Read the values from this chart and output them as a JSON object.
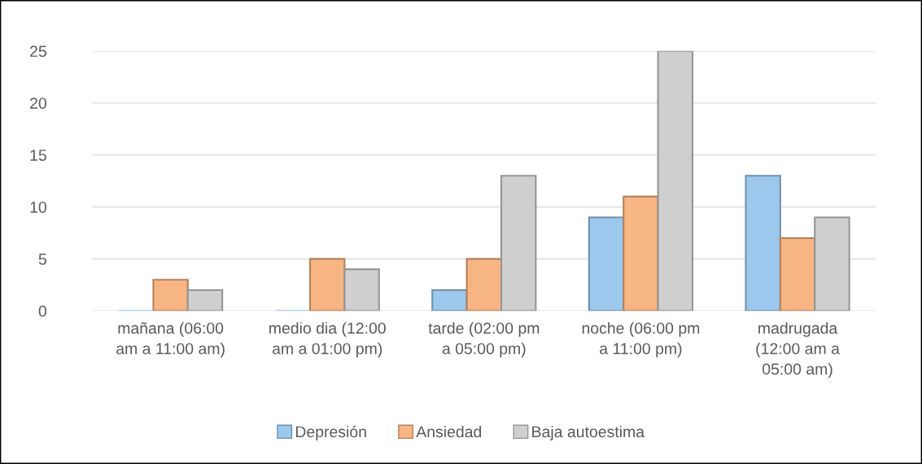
{
  "chart_data": {
    "type": "bar",
    "categories": [
      "mañana (06:00\nam a 11:00 am)",
      "medio dia (12:00\nam a 01:00 pm)",
      "tarde (02:00 pm\na 05:00 pm)",
      "noche (06:00 pm\na 11:00 pm)",
      "madrugada\n(12:00 am a\n05:00 am)"
    ],
    "series": [
      {
        "name": "Depresión",
        "color": "#9dc8ee",
        "values": [
          0,
          0,
          2,
          9,
          13
        ]
      },
      {
        "name": "Ansiedad",
        "color": "#f8b584",
        "values": [
          3,
          5,
          5,
          11,
          7
        ]
      },
      {
        "name": "Baja autoestima",
        "color": "#cfcfcf",
        "values": [
          2,
          4,
          13,
          25,
          9
        ]
      }
    ],
    "ylim": [
      0,
      25
    ],
    "yticks": [
      0,
      5,
      10,
      15,
      20,
      25
    ],
    "grid": "y",
    "legend": "bottom"
  }
}
